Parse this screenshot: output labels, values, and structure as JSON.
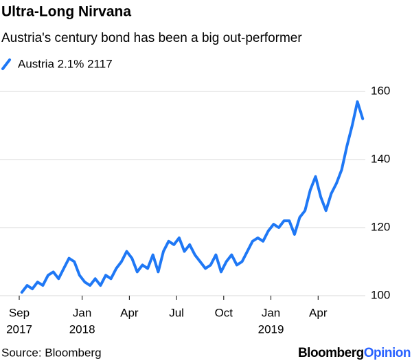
{
  "chart_data": {
    "type": "line",
    "title": "Ultra-Long Nirvana",
    "subtitle": "Austria's century bond has been a big out-performer",
    "source": "Source: Bloomberg",
    "branding": [
      "Bloomberg",
      "Opinion"
    ],
    "x": [
      "2017-09",
      "2017-09",
      "2017-09",
      "2017-10",
      "2017-10",
      "2017-10",
      "2017-11",
      "2017-11",
      "2017-11",
      "2017-12",
      "2017-12",
      "2017-12",
      "2018-01",
      "2018-01",
      "2018-01",
      "2018-02",
      "2018-02",
      "2018-02",
      "2018-03",
      "2018-03",
      "2018-03",
      "2018-04",
      "2018-04",
      "2018-04",
      "2018-05",
      "2018-05",
      "2018-05",
      "2018-06",
      "2018-06",
      "2018-06",
      "2018-07",
      "2018-07",
      "2018-07",
      "2018-08",
      "2018-08",
      "2018-08",
      "2018-09",
      "2018-09",
      "2018-09",
      "2018-10",
      "2018-10",
      "2018-10",
      "2018-11",
      "2018-11",
      "2018-11",
      "2018-12",
      "2018-12",
      "2018-12",
      "2019-01",
      "2019-01",
      "2019-01",
      "2019-02",
      "2019-02",
      "2019-02",
      "2019-03",
      "2019-03",
      "2019-03",
      "2019-04",
      "2019-04",
      "2019-04",
      "2019-05",
      "2019-05",
      "2019-05",
      "2019-06",
      "2019-06",
      "2019-06"
    ],
    "series": [
      {
        "name": "Austria 2.1% 2117",
        "color": "#1f78f5",
        "values": [
          101,
          103,
          102,
          104,
          103,
          106,
          107,
          105,
          108,
          111,
          110,
          106,
          104,
          103,
          105,
          103,
          106,
          105,
          108,
          110,
          113,
          111,
          107,
          109,
          108,
          112,
          107,
          113,
          116,
          115,
          117,
          113,
          115,
          112,
          110,
          108,
          109,
          112,
          107,
          110,
          112,
          109,
          110,
          113,
          116,
          117,
          116,
          119,
          121,
          120,
          122,
          122,
          118,
          123,
          125,
          131,
          135,
          129,
          125,
          130,
          133,
          137,
          144,
          150,
          157,
          152
        ]
      }
    ],
    "xlim": [
      "2017-09",
      "2019-07"
    ],
    "xticks": [
      {
        "value": "2017-09",
        "label": "Sep",
        "year": "2017"
      },
      {
        "value": "2018-01",
        "label": "Jan",
        "year": "2018"
      },
      {
        "value": "2018-04",
        "label": "Apr"
      },
      {
        "value": "2018-07",
        "label": "Jul"
      },
      {
        "value": "2018-10",
        "label": "Oct"
      },
      {
        "value": "2019-01",
        "label": "Jan",
        "year": "2019"
      },
      {
        "value": "2019-04",
        "label": "Apr"
      }
    ],
    "ylim": [
      100,
      160
    ],
    "yticks": [
      100,
      120,
      140,
      160
    ],
    "grid": true,
    "legend": "top-left"
  }
}
